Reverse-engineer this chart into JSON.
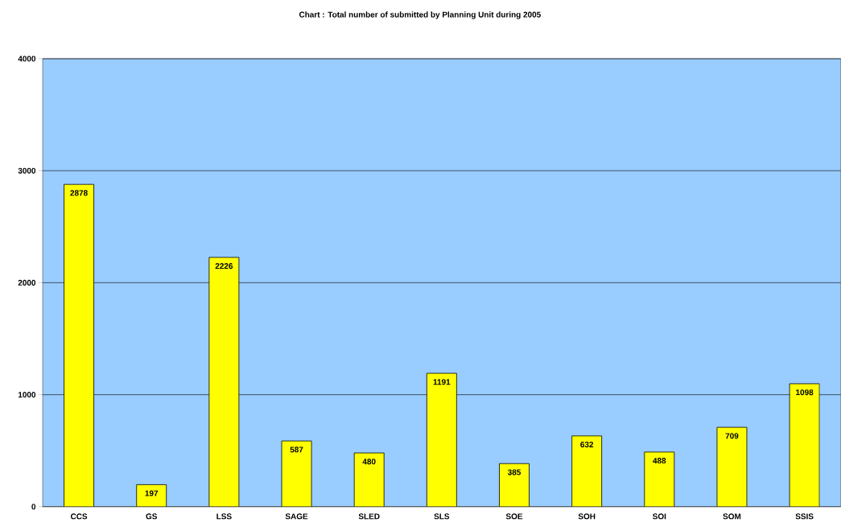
{
  "chart_data": {
    "type": "bar",
    "title": "Chart  :  Total number of submitted by Planning Unit during 2005",
    "categories": [
      "CCS",
      "GS",
      "LSS",
      "SAGE",
      "SLED",
      "SLS",
      "SOE",
      "SOH",
      "SOI",
      "SOM",
      "SSIS"
    ],
    "values": [
      2878,
      197,
      2226,
      587,
      480,
      1191,
      385,
      632,
      488,
      709,
      1098
    ],
    "color": "#ffff00",
    "ylim": [
      0,
      4000
    ],
    "yticks": [
      0,
      1000,
      2000,
      3000,
      4000
    ],
    "grid": "y",
    "data_labels": true
  }
}
